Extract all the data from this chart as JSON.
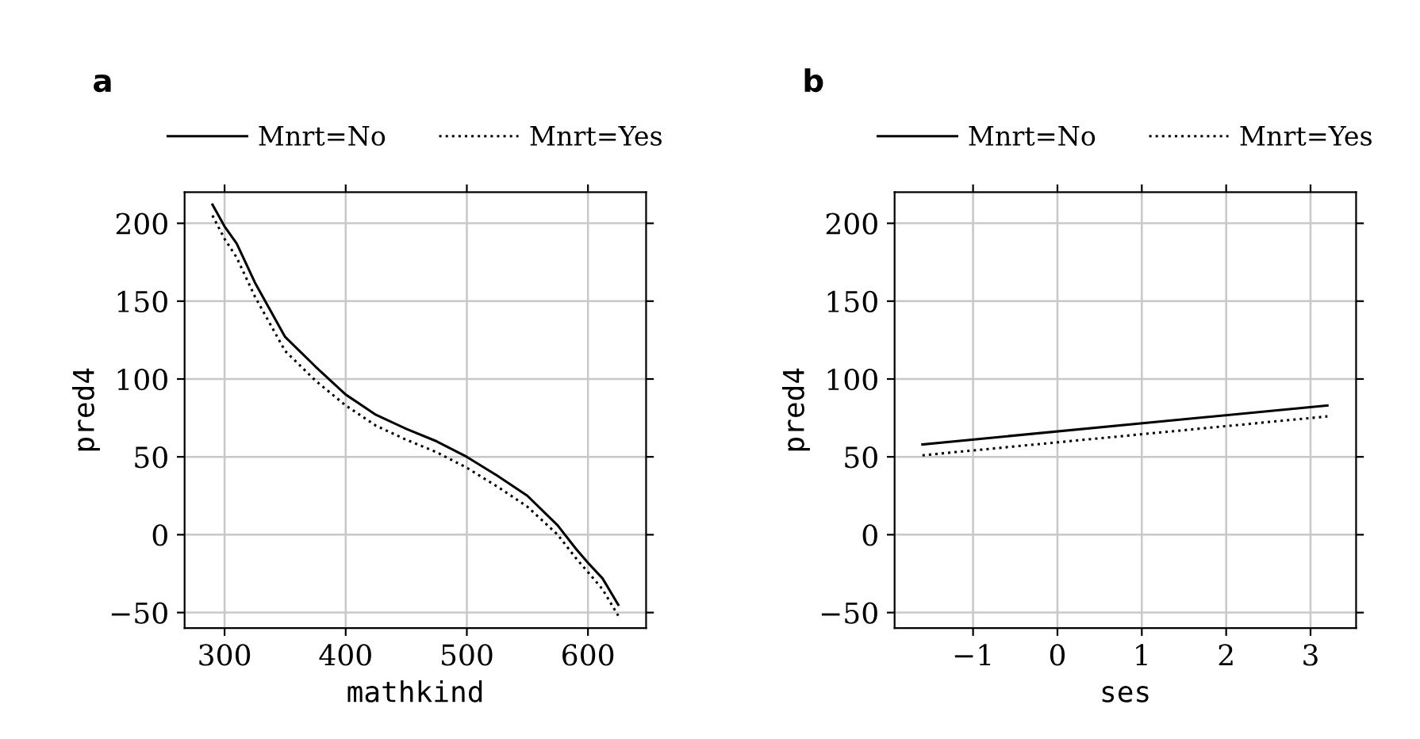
{
  "chart_data": [
    {
      "type": "line",
      "title": "a",
      "xlabel": "mathkind",
      "ylabel": "pred4",
      "xlim": [
        267,
        648
      ],
      "xticks": [
        300,
        400,
        500,
        600
      ],
      "ylim": [
        -60,
        220
      ],
      "yticks": [
        {
          "value": -50,
          "label": "−50"
        },
        0,
        50,
        100,
        150,
        200
      ],
      "grid": true,
      "legend": "top",
      "marker": "none",
      "series": [
        {
          "name": "Mnrt=No",
          "color": "#000000",
          "line_style": "solid",
          "x": [
            290,
            300,
            310,
            325,
            350,
            375,
            400,
            425,
            450,
            475,
            500,
            525,
            550,
            575,
            590,
            600,
            612,
            625
          ],
          "values": [
            212,
            198,
            187,
            162,
            127,
            108,
            90,
            77,
            68,
            60,
            50,
            38,
            25,
            6,
            -9,
            -18,
            -28,
            -45
          ]
        },
        {
          "name": "Mnrt=Yes",
          "color": "#000000",
          "line_style": "dotted",
          "x": [
            290,
            300,
            310,
            325,
            350,
            375,
            400,
            425,
            450,
            475,
            500,
            525,
            550,
            575,
            590,
            600,
            612,
            625
          ],
          "values": [
            205,
            190,
            178,
            153,
            118,
            99,
            83,
            70,
            61,
            53,
            43,
            31,
            18,
            0,
            -15,
            -24,
            -35,
            -52
          ]
        }
      ]
    },
    {
      "type": "line",
      "title": "b",
      "xlabel": "ses",
      "ylabel": "pred4",
      "xlim": [
        -1.93,
        3.54
      ],
      "xticks": [
        {
          "value": -1,
          "label": "−1"
        },
        0,
        1,
        2,
        3
      ],
      "ylim": [
        -60,
        220
      ],
      "yticks": [
        {
          "value": -50,
          "label": "−50"
        },
        0,
        50,
        100,
        150,
        200
      ],
      "grid": true,
      "legend": "top",
      "marker": "none",
      "series": [
        {
          "name": "Mnrt=No",
          "color": "#000000",
          "line_style": "solid",
          "x": [
            -1.6,
            3.2
          ],
          "values": [
            58,
            83
          ]
        },
        {
          "name": "Mnrt=Yes",
          "color": "#000000",
          "line_style": "dotted",
          "x": [
            -1.6,
            3.2
          ],
          "values": [
            51,
            76
          ]
        }
      ]
    }
  ]
}
